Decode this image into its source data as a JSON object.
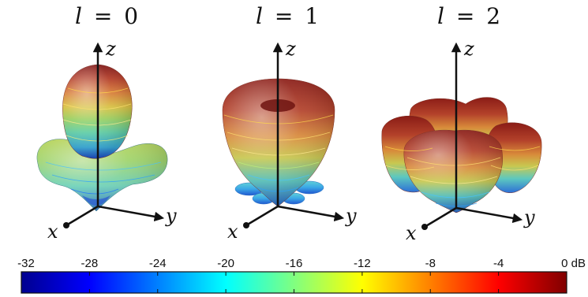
{
  "panels": [
    {
      "title": "l = 0",
      "title_l": "l",
      "title_eq": "=",
      "title_n": "0",
      "axes": {
        "z": "z",
        "x": "x",
        "y": "y"
      }
    },
    {
      "title": "l = 1",
      "title_l": "l",
      "title_eq": "=",
      "title_n": "1",
      "axes": {
        "z": "z",
        "x": "x",
        "y": "y"
      }
    },
    {
      "title": "l = 2",
      "title_l": "l",
      "title_eq": "=",
      "title_n": "2",
      "axes": {
        "z": "z",
        "x": "x",
        "y": "y"
      }
    }
  ],
  "colorbar": {
    "ticks": [
      "-32",
      "-28",
      "-24",
      "-20",
      "-16",
      "-12",
      "-8",
      "-4",
      "0 dB"
    ],
    "min": -32,
    "max": 0,
    "unit": "dB",
    "colormap": [
      "#00008f",
      "#0000ff",
      "#0080ff",
      "#00ffff",
      "#80ff80",
      "#ffff00",
      "#ff8000",
      "#ff0000",
      "#800000"
    ]
  }
}
